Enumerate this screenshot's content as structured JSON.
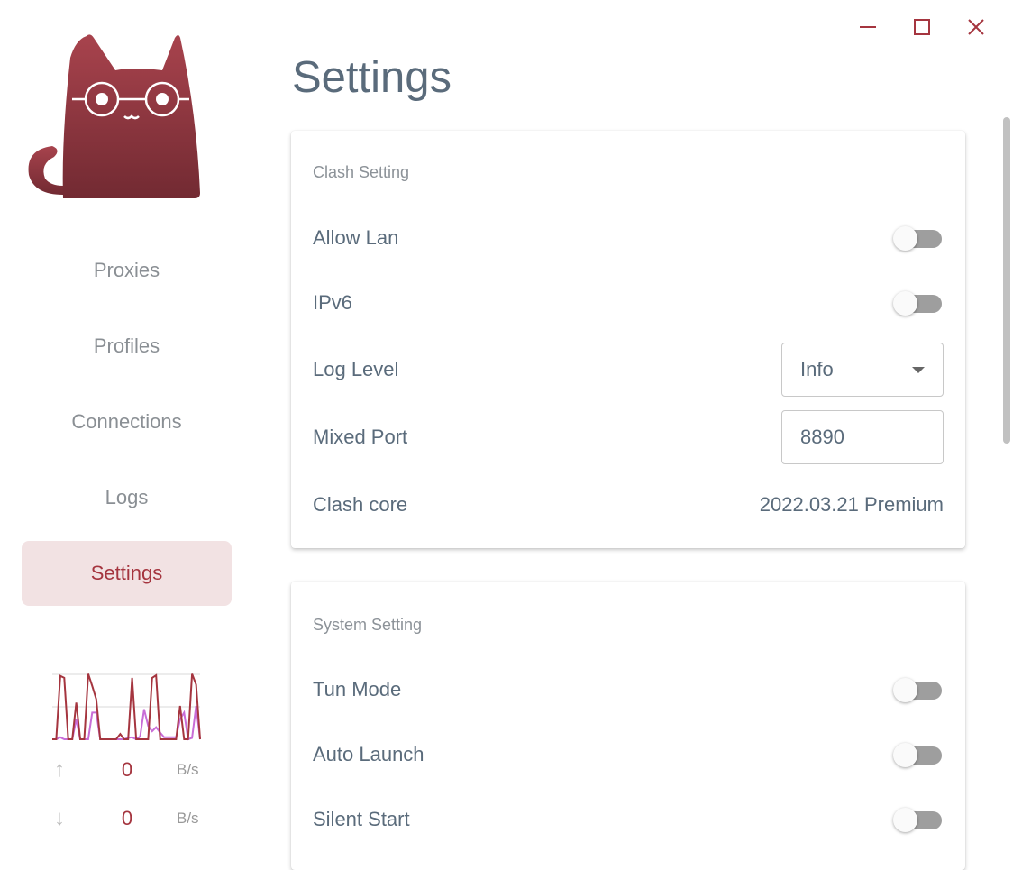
{
  "window": {
    "minimize_icon": "minimize-icon",
    "maximize_icon": "maximize-icon",
    "close_icon": "close-icon",
    "accent": "#a5353f"
  },
  "sidebar": {
    "items": [
      {
        "label": "Proxies"
      },
      {
        "label": "Profiles"
      },
      {
        "label": "Connections"
      },
      {
        "label": "Logs"
      },
      {
        "label": "Settings",
        "active": true
      }
    ],
    "traffic": {
      "upload": {
        "value": "0",
        "unit": "B/s",
        "icon": "arrow-up-icon"
      },
      "download": {
        "value": "0",
        "unit": "B/s",
        "icon": "arrow-down-icon"
      },
      "graph": {
        "upload_series": [
          0,
          0,
          0.95,
          0.92,
          0,
          0,
          0.55,
          0,
          0,
          0.98,
          0.8,
          0.6,
          0,
          0,
          0,
          0,
          0,
          0.08,
          0,
          0,
          0.92,
          0,
          0,
          0,
          0,
          0.92,
          0.96,
          0,
          0,
          0,
          0,
          0,
          0.5,
          0,
          0,
          0.98,
          0.82,
          0
        ],
        "download_series": [
          0,
          0,
          0.03,
          0,
          0,
          0,
          0.3,
          0,
          0,
          0,
          0.4,
          0.4,
          0,
          0,
          0,
          0,
          0,
          0,
          0,
          0.02,
          0.03,
          0,
          0.04,
          0.45,
          0.2,
          0.12,
          0.18,
          0.1,
          0.03,
          0.03,
          0.03,
          0.03,
          0.3,
          0.4,
          0,
          0.02,
          0.5,
          0
        ],
        "upload_color": "#a5353f",
        "download_color": "#c86dd7"
      }
    }
  },
  "main": {
    "title": "Settings",
    "clash": {
      "title": "Clash Setting",
      "allow_lan": {
        "label": "Allow Lan",
        "on": false
      },
      "ipv6": {
        "label": "IPv6",
        "on": false
      },
      "log_level": {
        "label": "Log Level",
        "value": "Info"
      },
      "mixed_port": {
        "label": "Mixed Port",
        "value": "8890"
      },
      "core": {
        "label": "Clash core",
        "value": "2022.03.21 Premium"
      }
    },
    "system": {
      "title": "System Setting",
      "tun": {
        "label": "Tun Mode",
        "on": false
      },
      "auto_launch": {
        "label": "Auto Launch",
        "on": false
      },
      "silent_start": {
        "label": "Silent Start",
        "on": false
      }
    }
  }
}
